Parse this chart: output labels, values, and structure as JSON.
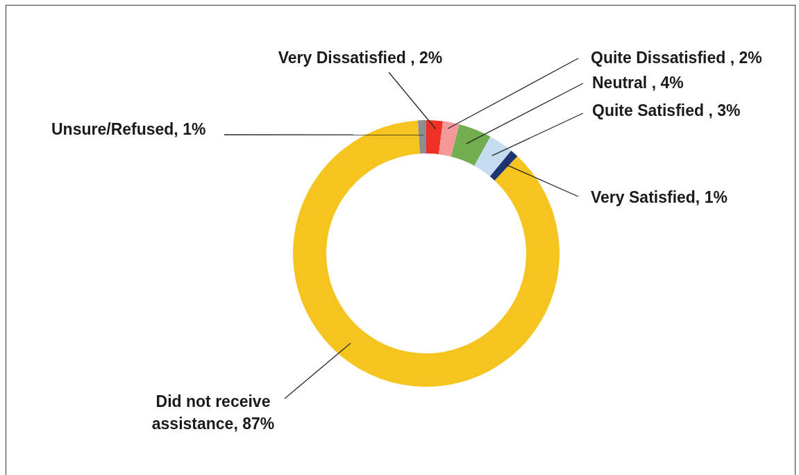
{
  "chart_data": {
    "type": "donut",
    "categories": [
      "Very Dissatisfied ",
      "Quite Dissatisfied ",
      "Neutral ",
      "Quite Satisfied ",
      "Very Satisfied",
      "Did not receive assistance",
      "Unsure/Refused"
    ],
    "values": [
      2,
      2,
      4,
      3,
      1,
      87,
      1
    ],
    "colors": [
      "#ee3124",
      "#f4989a",
      "#72ad4f",
      "#c4dcef",
      "#1f3571",
      "#f6c41e",
      "#8e8e8e"
    ],
    "value_labels": [
      "2%",
      "2%",
      "4%",
      "3%",
      "1%",
      "87%",
      "1%"
    ]
  }
}
